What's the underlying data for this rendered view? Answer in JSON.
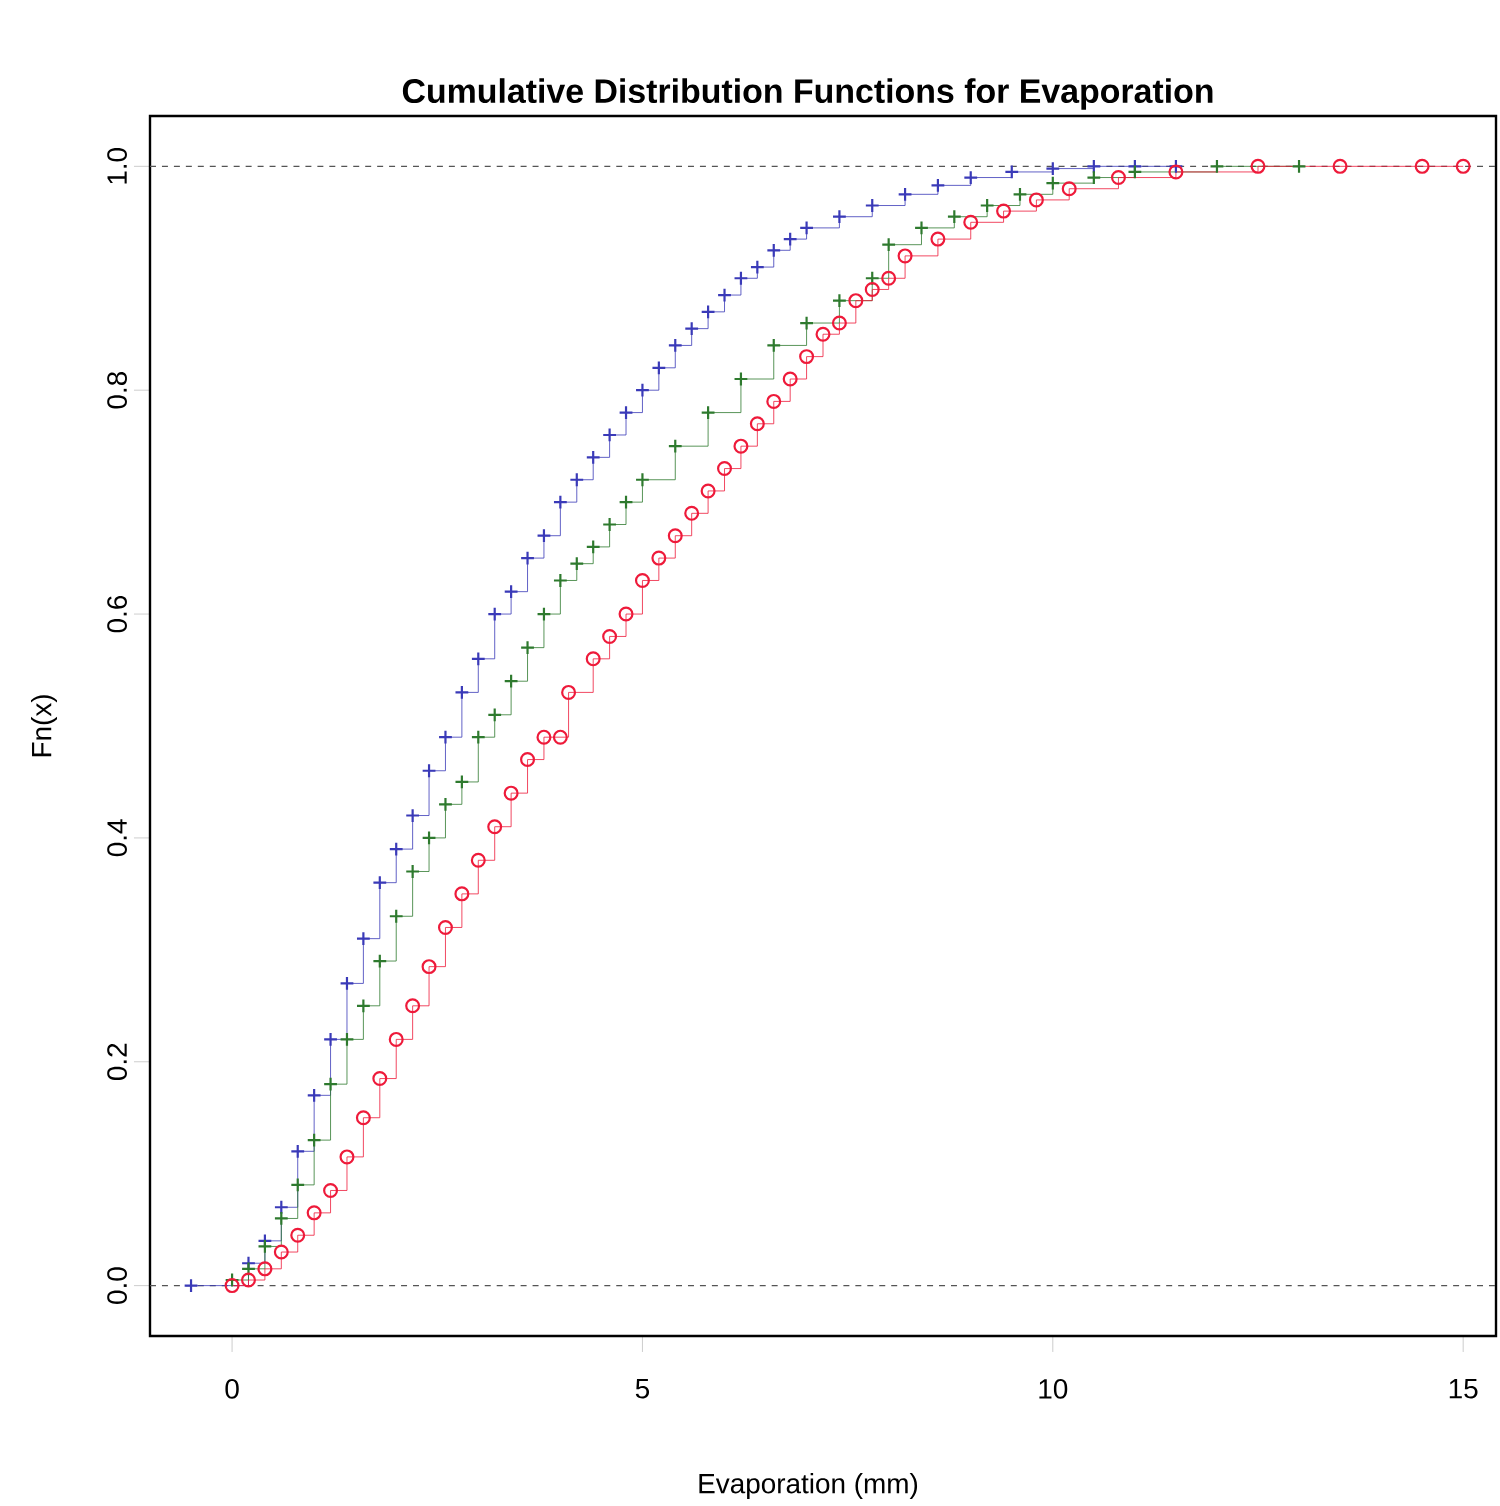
{
  "chart_data": {
    "type": "step",
    "title": "Cumulative Distribution Functions for Evaporation",
    "xlabel": "Evaporation (mm)",
    "ylabel": "Fn(x)",
    "xlim": [
      -1,
      15.4
    ],
    "ylim": [
      -0.045,
      1.045
    ],
    "xticks": [
      0,
      5,
      10,
      15
    ],
    "yticks": [
      {
        "value": 0,
        "label": "0.0"
      },
      {
        "value": 0.2,
        "label": "0.2"
      },
      {
        "value": 0.4,
        "label": "0.4"
      },
      {
        "value": 0.6,
        "label": "0.6"
      },
      {
        "value": 0.8,
        "label": "0.8"
      },
      {
        "value": 1,
        "label": "1.0"
      }
    ],
    "ref_lines": [
      {
        "axis": "y",
        "value": 0,
        "color": "#555555",
        "line_style": "dashed"
      },
      {
        "axis": "y",
        "value": 1,
        "color": "#555555",
        "line_style": "dashed"
      }
    ],
    "series": [
      {
        "color": "#3a3ab8",
        "marker": "cross",
        "x": [
          -0.5,
          0.2,
          0.4,
          0.6,
          0.8,
          1.0,
          1.2,
          1.4,
          1.6,
          1.8,
          2.0,
          2.2,
          2.4,
          2.6,
          2.8,
          3.0,
          3.2,
          3.4,
          3.6,
          3.8,
          4.0,
          4.2,
          4.4,
          4.6,
          4.8,
          5.0,
          5.2,
          5.4,
          5.6,
          5.8,
          6.0,
          6.2,
          6.4,
          6.6,
          6.8,
          7.0,
          7.4,
          7.8,
          8.2,
          8.6,
          9.0,
          9.5,
          10,
          10.5,
          11,
          11.5
        ],
        "values": [
          0,
          0.02,
          0.04,
          0.07,
          0.12,
          0.17,
          0.22,
          0.27,
          0.31,
          0.36,
          0.39,
          0.42,
          0.46,
          0.49,
          0.53,
          0.56,
          0.6,
          0.62,
          0.65,
          0.67,
          0.7,
          0.72,
          0.74,
          0.76,
          0.78,
          0.8,
          0.82,
          0.84,
          0.855,
          0.87,
          0.885,
          0.9,
          0.91,
          0.925,
          0.935,
          0.945,
          0.955,
          0.965,
          0.975,
          0.983,
          0.99,
          0.995,
          0.998,
          1,
          1,
          1
        ]
      },
      {
        "color": "#2e7a2e",
        "marker": "cross",
        "x": [
          0,
          0.2,
          0.4,
          0.6,
          0.8,
          1.0,
          1.2,
          1.4,
          1.6,
          1.8,
          2.0,
          2.2,
          2.4,
          2.6,
          2.8,
          3.0,
          3.2,
          3.4,
          3.6,
          3.8,
          4.0,
          4.2,
          4.4,
          4.6,
          4.8,
          5.0,
          5.4,
          5.8,
          6.2,
          6.6,
          7.0,
          7.4,
          7.8,
          8.0,
          8.4,
          8.8,
          9.2,
          9.6,
          10,
          10.5,
          11,
          12,
          13
        ],
        "values": [
          0.005,
          0.015,
          0.035,
          0.06,
          0.09,
          0.13,
          0.18,
          0.22,
          0.25,
          0.29,
          0.33,
          0.37,
          0.4,
          0.43,
          0.45,
          0.49,
          0.51,
          0.54,
          0.57,
          0.6,
          0.63,
          0.645,
          0.66,
          0.68,
          0.7,
          0.72,
          0.75,
          0.78,
          0.81,
          0.84,
          0.86,
          0.88,
          0.9,
          0.93,
          0.945,
          0.955,
          0.965,
          0.975,
          0.985,
          0.99,
          0.995,
          1,
          1
        ]
      },
      {
        "color": "#ee1a3a",
        "marker": "circle",
        "x": [
          0,
          0.2,
          0.4,
          0.6,
          0.8,
          1.0,
          1.2,
          1.4,
          1.6,
          1.8,
          2.0,
          2.2,
          2.4,
          2.6,
          2.8,
          3.0,
          3.2,
          3.4,
          3.6,
          3.8,
          4.0,
          4.1,
          4.4,
          4.6,
          4.8,
          5.0,
          5.2,
          5.4,
          5.6,
          5.8,
          6.0,
          6.2,
          6.4,
          6.6,
          6.8,
          7.0,
          7.2,
          7.4,
          7.6,
          7.8,
          8.0,
          8.2,
          8.6,
          9.0,
          9.4,
          9.8,
          10.2,
          10.8,
          11.5,
          12.5,
          13.5,
          14.5,
          15
        ],
        "values": [
          0,
          0.005,
          0.015,
          0.03,
          0.045,
          0.065,
          0.085,
          0.115,
          0.15,
          0.185,
          0.22,
          0.25,
          0.285,
          0.32,
          0.35,
          0.38,
          0.41,
          0.44,
          0.47,
          0.49,
          0.49,
          0.53,
          0.56,
          0.58,
          0.6,
          0.63,
          0.65,
          0.67,
          0.69,
          0.71,
          0.73,
          0.75,
          0.77,
          0.79,
          0.81,
          0.83,
          0.85,
          0.86,
          0.88,
          0.89,
          0.9,
          0.92,
          0.935,
          0.95,
          0.96,
          0.97,
          0.98,
          0.99,
          0.995,
          1,
          1,
          1,
          1
        ]
      }
    ]
  }
}
